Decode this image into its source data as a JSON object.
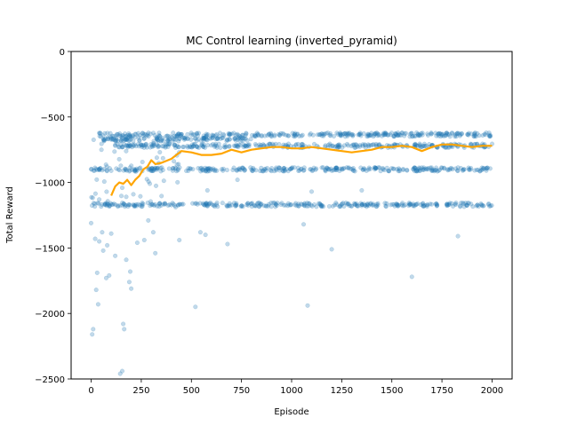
{
  "chart_data": {
    "type": "scatter",
    "title": "MC Control learning (inverted_pyramid)",
    "xlabel": "Episode",
    "ylabel": "Total Reward",
    "xlim": [
      -100,
      2100
    ],
    "ylim": [
      -2500,
      0
    ],
    "x_ticks": [
      0,
      250,
      500,
      750,
      1000,
      1250,
      1500,
      1750,
      2000
    ],
    "y_ticks": [
      0,
      -500,
      -1000,
      -1500,
      -2000,
      -2500
    ],
    "x_tick_labels": [
      "0",
      "250",
      "500",
      "750",
      "1000",
      "1250",
      "1500",
      "1750",
      "2000"
    ],
    "y_tick_labels": [
      "0",
      "−500",
      "−1000",
      "−1500",
      "−2000",
      "−2500"
    ],
    "grid": false,
    "legend": false,
    "colors": {
      "scatter": "#1f77b4",
      "moving_average": "#ffa500"
    },
    "scatter_bands": [
      {
        "y": -635,
        "x_range": [
          40,
          2000
        ]
      },
      {
        "y": -670,
        "x_range": [
          60,
          800
        ]
      },
      {
        "y": -720,
        "x_range": [
          120,
          2000
        ]
      },
      {
        "y": -900,
        "x_range": [
          0,
          2000
        ]
      },
      {
        "y": -1170,
        "x_range": [
          0,
          2000
        ]
      }
    ],
    "outliers": [
      {
        "x": 0,
        "y": -1310
      },
      {
        "x": 5,
        "y": -2160
      },
      {
        "x": 10,
        "y": -2120
      },
      {
        "x": 20,
        "y": -1430
      },
      {
        "x": 25,
        "y": -1820
      },
      {
        "x": 30,
        "y": -1690
      },
      {
        "x": 35,
        "y": -1930
      },
      {
        "x": 40,
        "y": -1450
      },
      {
        "x": 55,
        "y": -1380
      },
      {
        "x": 60,
        "y": -1520
      },
      {
        "x": 75,
        "y": -1730
      },
      {
        "x": 80,
        "y": -1480
      },
      {
        "x": 90,
        "y": -1710
      },
      {
        "x": 100,
        "y": -1390
      },
      {
        "x": 120,
        "y": -1560
      },
      {
        "x": 145,
        "y": -2460
      },
      {
        "x": 155,
        "y": -2440
      },
      {
        "x": 160,
        "y": -2080
      },
      {
        "x": 165,
        "y": -2120
      },
      {
        "x": 175,
        "y": -1590
      },
      {
        "x": 190,
        "y": -1760
      },
      {
        "x": 195,
        "y": -1680
      },
      {
        "x": 200,
        "y": -1810
      },
      {
        "x": 230,
        "y": -1460
      },
      {
        "x": 265,
        "y": -1440
      },
      {
        "x": 285,
        "y": -1290
      },
      {
        "x": 310,
        "y": -1380
      },
      {
        "x": 320,
        "y": -1540
      },
      {
        "x": 440,
        "y": -1440
      },
      {
        "x": 520,
        "y": -1950
      },
      {
        "x": 545,
        "y": -1380
      },
      {
        "x": 570,
        "y": -1400
      },
      {
        "x": 680,
        "y": -1470
      },
      {
        "x": 1060,
        "y": -1320
      },
      {
        "x": 1080,
        "y": -1940
      },
      {
        "x": 1200,
        "y": -1510
      },
      {
        "x": 1600,
        "y": -1720
      },
      {
        "x": 1830,
        "y": -1410
      },
      {
        "x": 730,
        "y": -980
      },
      {
        "x": 580,
        "y": -1060
      },
      {
        "x": 1100,
        "y": -1070
      },
      {
        "x": 1350,
        "y": -1060
      }
    ],
    "moving_average": {
      "x": [
        100,
        120,
        140,
        160,
        180,
        200,
        220,
        240,
        260,
        280,
        300,
        320,
        350,
        400,
        450,
        500,
        550,
        600,
        650,
        700,
        750,
        800,
        850,
        900,
        950,
        1000,
        1050,
        1100,
        1150,
        1200,
        1250,
        1300,
        1350,
        1400,
        1450,
        1500,
        1550,
        1600,
        1650,
        1700,
        1750,
        1800,
        1850,
        1900,
        1950,
        2000
      ],
      "y": [
        -1100,
        -1030,
        -1000,
        -1010,
        -980,
        -1020,
        -980,
        -950,
        -900,
        -880,
        -830,
        -860,
        -850,
        -820,
        -760,
        -770,
        -790,
        -790,
        -780,
        -750,
        -770,
        -750,
        -740,
        -730,
        -730,
        -740,
        -740,
        -730,
        -740,
        -750,
        -760,
        -770,
        -760,
        -750,
        -730,
        -730,
        -720,
        -730,
        -760,
        -730,
        -710,
        -710,
        -720,
        -730,
        -720,
        -720
      ]
    }
  }
}
